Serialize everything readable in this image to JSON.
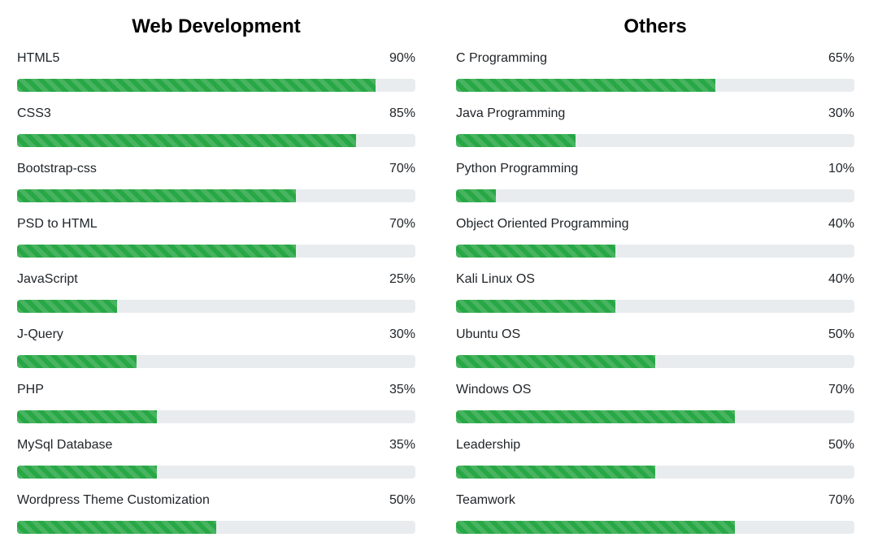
{
  "columns": [
    {
      "title": "Web Development",
      "skills": [
        {
          "name": "HTML5",
          "percent_label": "90%",
          "value": 90
        },
        {
          "name": "CSS3",
          "percent_label": "85%",
          "value": 85
        },
        {
          "name": "Bootstrap-css",
          "percent_label": "70%",
          "value": 70
        },
        {
          "name": "PSD to HTML",
          "percent_label": "70%",
          "value": 70
        },
        {
          "name": "JavaScript",
          "percent_label": "25%",
          "value": 25
        },
        {
          "name": "J-Query",
          "percent_label": "30%",
          "value": 30
        },
        {
          "name": "PHP",
          "percent_label": "35%",
          "value": 35
        },
        {
          "name": "MySql Database",
          "percent_label": "35%",
          "value": 35
        },
        {
          "name": "Wordpress Theme Customization",
          "percent_label": "50%",
          "value": 50
        }
      ]
    },
    {
      "title": "Others",
      "skills": [
        {
          "name": "C Programming",
          "percent_label": "65%",
          "value": 65
        },
        {
          "name": "Java Programming",
          "percent_label": "30%",
          "value": 30
        },
        {
          "name": "Python Programming",
          "percent_label": "10%",
          "value": 10
        },
        {
          "name": "Object Oriented Programming",
          "percent_label": "40%",
          "value": 40
        },
        {
          "name": "Kali Linux OS",
          "percent_label": "40%",
          "value": 40
        },
        {
          "name": "Ubuntu OS",
          "percent_label": "50%",
          "value": 50
        },
        {
          "name": "Windows OS",
          "percent_label": "70%",
          "value": 70
        },
        {
          "name": "Leadership",
          "percent_label": "50%",
          "value": 50
        },
        {
          "name": "Teamwork",
          "percent_label": "70%",
          "value": 70
        }
      ]
    }
  ],
  "colors": {
    "bar_fill": "#28a745",
    "track": "#e9ecef",
    "text": "#212529"
  }
}
